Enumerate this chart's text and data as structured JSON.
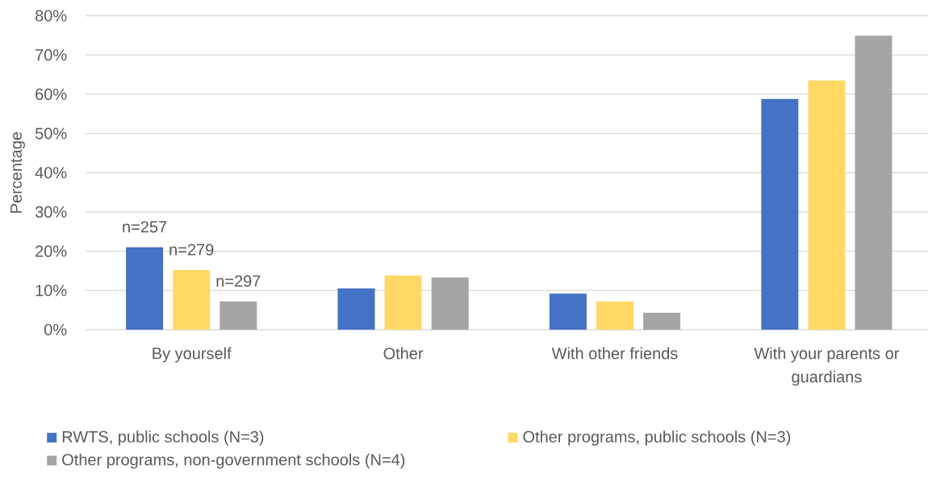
{
  "chart_data": {
    "type": "bar",
    "ylabel": "Percentage",
    "categories": [
      "By yourself",
      "Other",
      "With other friends",
      "With your parents or guardians"
    ],
    "series": [
      {
        "name": "RWTS, public schools (N=3)",
        "color": "#4472c4",
        "values": [
          21,
          10.5,
          9.2,
          58.8
        ]
      },
      {
        "name": "Other programs, public schools (N=3)",
        "color": "#ffd966",
        "values": [
          15.2,
          13.8,
          7.2,
          63.5
        ]
      },
      {
        "name": "Other programs, non-government schools (N=4)",
        "color": "#a5a5a5",
        "values": [
          7.2,
          13.3,
          4.3,
          74.9
        ]
      }
    ],
    "ylim": [
      0,
      80
    ],
    "yticks": [
      {
        "value": 0,
        "label": "0%"
      },
      {
        "value": 10,
        "label": "10%"
      },
      {
        "value": 20,
        "label": "20%"
      },
      {
        "value": 30,
        "label": "30%"
      },
      {
        "value": 40,
        "label": "40%"
      },
      {
        "value": 50,
        "label": "50%"
      },
      {
        "value": 60,
        "label": "60%"
      },
      {
        "value": 70,
        "label": "70%"
      },
      {
        "value": 80,
        "label": "80%"
      }
    ],
    "annotations": [
      "n=257",
      "n=279",
      "n=297"
    ],
    "grid": "y",
    "legend": "bottom"
  }
}
